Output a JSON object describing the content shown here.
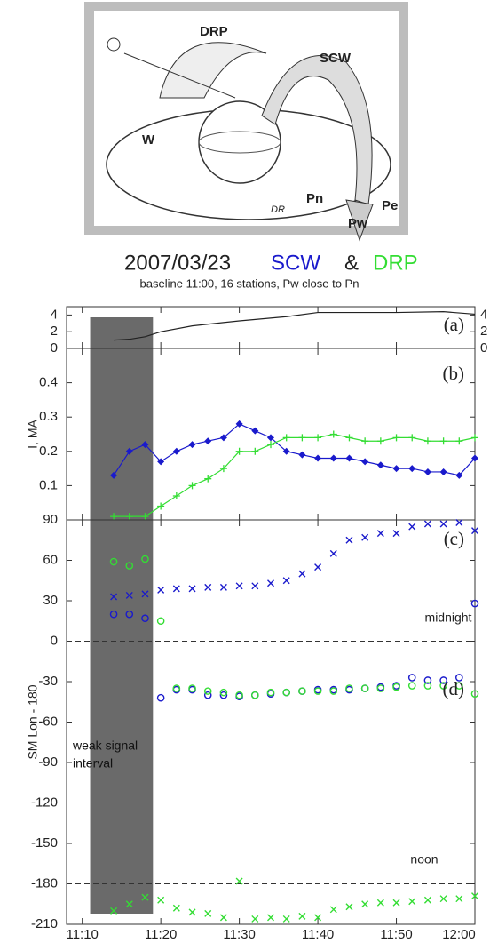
{
  "diagram": {
    "labels": [
      "DRP",
      "SCW",
      "W",
      "Pn",
      "Pe",
      "Pw",
      "DR"
    ]
  },
  "header": {
    "title": [
      "2007/03/23",
      "SCW",
      "&",
      "DRP"
    ],
    "subtitle": "baseline 11:00, 16 stations, Pw close to Pn"
  },
  "chart_data": [
    {
      "type": "line",
      "panel_label": "(a)",
      "ylim": [
        0,
        5
      ],
      "yticks": [
        0,
        2,
        4
      ],
      "y2ticks": [
        0,
        2,
        4
      ],
      "x": [
        "11:14",
        "11:16",
        "11:18",
        "11:20",
        "11:24",
        "11:30",
        "11:36",
        "11:40",
        "11:50",
        "11:56",
        "12:00"
      ],
      "series": [
        {
          "color": "#222222",
          "values": [
            1.0,
            1.1,
            1.4,
            2.0,
            2.7,
            3.3,
            3.8,
            4.3,
            4.3,
            4.4,
            4.1
          ]
        }
      ]
    },
    {
      "type": "line",
      "panel_label": "(b)",
      "y_label": "I, MA",
      "ylim": [
        0,
        0.5
      ],
      "yticks": [
        0.1,
        0.2,
        0.3,
        0.4
      ],
      "x": [
        "11:14",
        "11:16",
        "11:18",
        "11:20",
        "11:22",
        "11:24",
        "11:26",
        "11:28",
        "11:30",
        "11:32",
        "11:34",
        "11:36",
        "11:38",
        "11:40",
        "11:42",
        "11:44",
        "11:46",
        "11:48",
        "11:50",
        "11:52",
        "11:54",
        "11:56",
        "11:58",
        "12:00"
      ],
      "series": [
        {
          "color": "#1a1acc",
          "marker": "diamond",
          "values": [
            0.13,
            0.2,
            0.22,
            0.17,
            0.2,
            0.22,
            0.23,
            0.24,
            0.28,
            0.26,
            0.24,
            0.2,
            0.19,
            0.18,
            0.18,
            0.18,
            0.17,
            0.16,
            0.15,
            0.15,
            0.14,
            0.14,
            0.13,
            0.18
          ]
        },
        {
          "color": "#33dd33",
          "marker": "plus",
          "values": [
            0.01,
            0.01,
            0.01,
            0.04,
            0.07,
            0.1,
            0.12,
            0.15,
            0.2,
            0.2,
            0.22,
            0.24,
            0.24,
            0.24,
            0.25,
            0.24,
            0.23,
            0.23,
            0.24,
            0.24,
            0.23,
            0.23,
            0.23,
            0.24
          ]
        }
      ]
    },
    {
      "type": "scatter",
      "panel_labels": [
        "(c)",
        "(d)"
      ],
      "y_label": "SM Lon - 180",
      "annotations": [
        "midnight",
        "noon"
      ],
      "span_label": [
        "weak signal",
        "interval"
      ],
      "ylim": [
        -210,
        90
      ],
      "yticks": [
        -210,
        -180,
        -150,
        -120,
        -90,
        -60,
        -30,
        0,
        30,
        60,
        90
      ],
      "hlines": [
        0,
        -180
      ],
      "xlim": [
        "11:08",
        "12:00"
      ],
      "xticks": [
        "11:10",
        "11:20",
        "11:30",
        "11:40",
        "11:50",
        "12:00"
      ],
      "span": [
        "11:11",
        "11:19"
      ],
      "x": [
        "11:14",
        "11:16",
        "11:18",
        "11:20",
        "11:22",
        "11:24",
        "11:26",
        "11:28",
        "11:30",
        "11:32",
        "11:34",
        "11:36",
        "11:38",
        "11:40",
        "11:42",
        "11:44",
        "11:46",
        "11:48",
        "11:50",
        "11:52",
        "11:54",
        "11:56",
        "11:58",
        "12:00"
      ],
      "series": [
        {
          "color": "#1a1acc",
          "marker": "cross",
          "values": [
            33,
            34,
            35,
            38,
            39,
            39,
            40,
            40,
            41,
            41,
            43,
            45,
            50,
            55,
            65,
            75,
            77,
            80,
            80,
            85,
            87,
            87,
            88,
            82
          ]
        },
        {
          "color": "#1a1acc",
          "marker": "circle",
          "values": [
            20,
            20,
            17,
            -42,
            -36,
            -36,
            -40,
            -40,
            -41,
            -40,
            -39,
            -38,
            -37,
            -36,
            -36,
            -36,
            -35,
            -34,
            -33,
            -27,
            -29,
            -29,
            -27,
            28
          ]
        },
        {
          "color": "#33dd33",
          "marker": "circle",
          "values": [
            59,
            56,
            61,
            15,
            -35,
            -35,
            -37,
            -38,
            -40,
            -40,
            -38,
            -38,
            -37,
            -37,
            -37,
            -35,
            -35,
            -35,
            -34,
            -33,
            -33,
            -33,
            -33,
            -39
          ]
        },
        {
          "color": "#33dd33",
          "marker": "cross",
          "values": [
            -200,
            -195,
            -190,
            -192,
            -198,
            -201,
            -202,
            -205,
            -178,
            -206,
            -205,
            -206,
            -204,
            -205,
            -199,
            -197,
            -195,
            -194,
            -194,
            -193,
            -192,
            -191,
            -191,
            -189
          ]
        }
      ]
    }
  ]
}
